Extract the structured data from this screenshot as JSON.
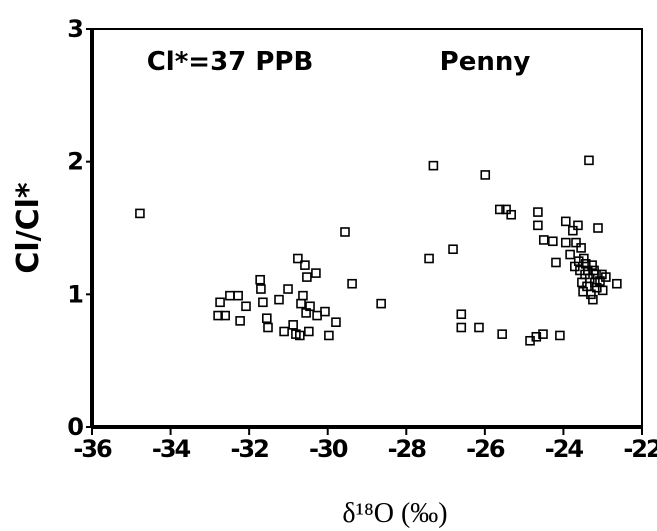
{
  "chart_data": {
    "type": "scatter",
    "x_label": "δ¹⁸O (‰)",
    "y_label": "Cl/Cl*",
    "annotations": [
      "Cl*=37 PPB",
      "Penny"
    ],
    "color": "#000000",
    "xlim": [
      -36,
      -22
    ],
    "xticks": [
      -36,
      -34,
      -32,
      -30,
      -28,
      -26,
      -24,
      -22
    ],
    "ylim": [
      0,
      3
    ],
    "yticks": [
      0,
      1,
      2,
      3
    ],
    "grid": false,
    "x": [
      -34.78,
      -32.74,
      -32.79,
      -32.61,
      -32.49,
      -32.28,
      -32.23,
      -32.08,
      -31.72,
      -31.7,
      -31.65,
      -31.55,
      -31.52,
      -31.24,
      -31.11,
      -31.01,
      -30.88,
      -30.81,
      -30.76,
      -30.71,
      -30.68,
      -30.63,
      -30.58,
      -30.55,
      -30.53,
      -30.48,
      -30.45,
      -30.3,
      -30.27,
      -30.07,
      -29.97,
      -29.79,
      -29.56,
      -29.38,
      -28.64,
      -27.42,
      -27.31,
      -26.81,
      -26.6,
      -26.6,
      -26.15,
      -25.99,
      -25.62,
      -25.46,
      -25.33,
      -25.56,
      -24.85,
      -24.69,
      -24.52,
      -24.65,
      -24.65,
      -24.5,
      -24.27,
      -24.19,
      -24.09,
      -23.94,
      -23.94,
      -23.83,
      -23.76,
      -23.71,
      -23.68,
      -23.63,
      -23.61,
      -23.58,
      -23.55,
      -23.53,
      -23.5,
      -23.48,
      -23.45,
      -23.43,
      -23.4,
      -23.38,
      -23.35,
      -23.33,
      -23.3,
      -23.27,
      -23.25,
      -23.22,
      -23.2,
      -23.17,
      -23.15,
      -23.12,
      -23.07,
      -23.02,
      -23.0,
      -22.92,
      -22.64
    ],
    "values": [
      1.61,
      0.94,
      0.84,
      0.84,
      0.99,
      0.99,
      0.8,
      0.91,
      1.11,
      1.04,
      0.94,
      0.82,
      0.75,
      0.96,
      0.72,
      1.04,
      0.77,
      0.7,
      1.27,
      0.69,
      0.93,
      0.99,
      1.22,
      0.86,
      1.13,
      0.72,
      0.91,
      1.16,
      0.84,
      0.87,
      0.69,
      0.79,
      1.47,
      1.08,
      0.93,
      1.27,
      1.97,
      1.34,
      0.85,
      0.75,
      0.75,
      1.9,
      1.64,
      1.64,
      1.6,
      0.7,
      0.65,
      0.68,
      0.7,
      1.62,
      1.52,
      1.41,
      1.4,
      1.24,
      0.69,
      1.39,
      1.55,
      1.3,
      1.48,
      1.21,
      1.39,
      1.52,
      1.25,
      1.18,
      1.35,
      1.09,
      1.02,
      1.27,
      1.15,
      1.23,
      1.06,
      1.18,
      2.01,
      1.12,
      1.0,
      1.22,
      0.96,
      1.18,
      1.09,
      1.15,
      1.05,
      1.5,
      1.1,
      1.15,
      1.03,
      1.13,
      1.08
    ]
  }
}
